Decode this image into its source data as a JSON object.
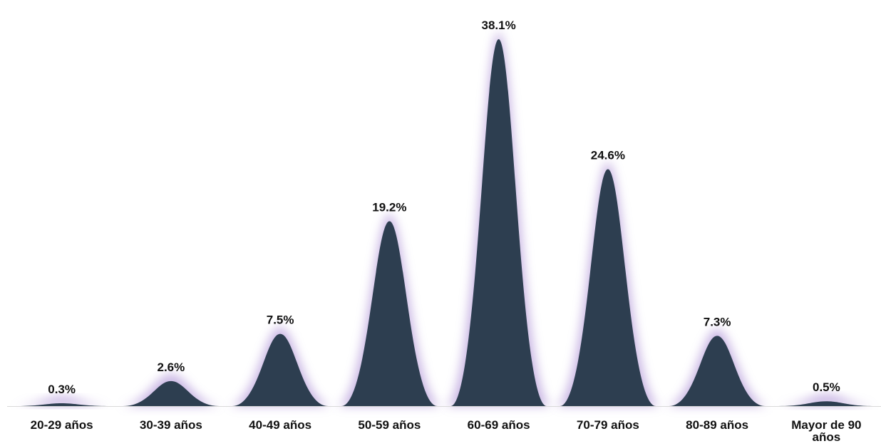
{
  "chart_data": {
    "type": "area",
    "categories": [
      "20-29 años",
      "30-39 años",
      "40-49 años",
      "50-59 años",
      "60-69 años",
      "70-79 años",
      "80-89 años",
      "Mayor de 90 años"
    ],
    "series": [
      {
        "values": [
          0.3,
          2.6,
          7.5,
          19.2,
          38.1,
          24.6,
          7.3,
          0.5
        ]
      }
    ],
    "value_labels": [
      "0.3%",
      "2.6%",
      "7.5%",
      "19.2%",
      "38.1%",
      "24.6%",
      "7.3%",
      "0.5%"
    ],
    "title": "",
    "xlabel": "",
    "ylabel": "",
    "ylim": [
      0,
      40
    ],
    "grid": false,
    "legend": "none",
    "colors": {
      "peak_fill": "#2d3e50",
      "glow": "#b9a0dc",
      "axis": "#d9d9d9",
      "text": "#111111"
    }
  }
}
